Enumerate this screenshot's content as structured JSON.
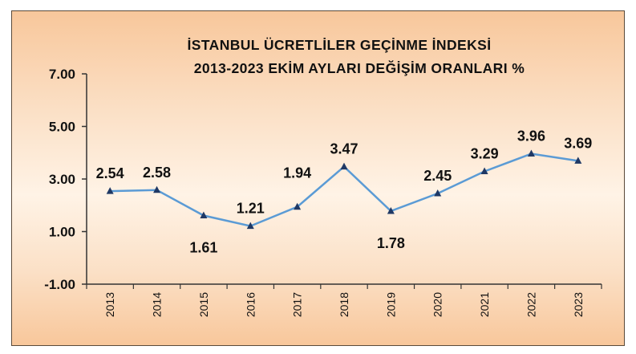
{
  "chart_data": {
    "type": "line",
    "title": "İSTANBUL ÜCRETLİLER GEÇİNME İNDEKSİ",
    "subtitle": "2013-2023 EKİM AYLARI DEĞİŞİM ORANLARI %",
    "categories": [
      "2013",
      "2014",
      "2015",
      "2016",
      "2017",
      "2018",
      "2019",
      "2020",
      "2021",
      "2022",
      "2023"
    ],
    "values": [
      2.54,
      2.58,
      1.61,
      1.21,
      1.94,
      3.47,
      1.78,
      2.45,
      3.29,
      3.96,
      3.69
    ],
    "data_labels": [
      "2.54",
      "2.58",
      "1.61",
      "1.21",
      "1.94",
      "3.47",
      "1.78",
      "2.45",
      "3.29",
      "3.96",
      "3.69"
    ],
    "ylim": [
      -1.0,
      7.0
    ],
    "yticks": [
      -1.0,
      1.0,
      3.0,
      5.0,
      7.0
    ],
    "ytick_labels": [
      "-1.00",
      "1.00",
      "3.00",
      "5.00",
      "7.00"
    ],
    "xlabel": "",
    "ylabel": "",
    "grid": false,
    "legend": "none",
    "line_color": "#5b9bd5",
    "marker_color": "#1f3864",
    "background_gradient": [
      "#f8c79b",
      "#fff3e6"
    ]
  }
}
